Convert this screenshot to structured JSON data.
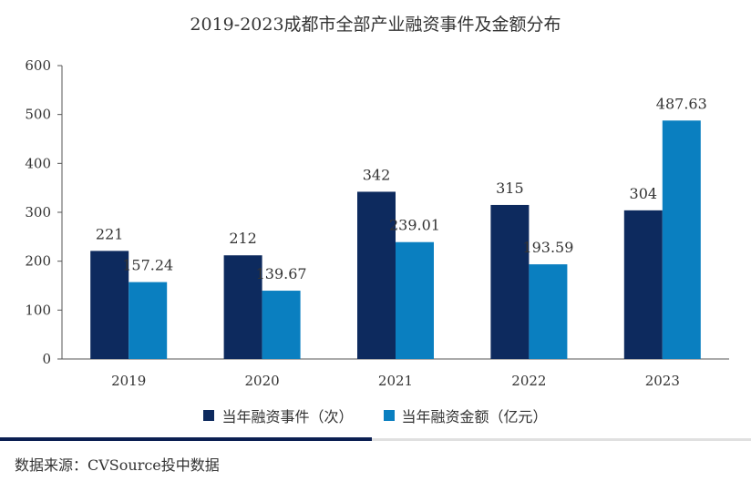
{
  "chart_data": {
    "type": "bar",
    "title": "2019-2023成都市全部产业融资事件及金额分布",
    "categories": [
      "2019",
      "2020",
      "2021",
      "2022",
      "2023"
    ],
    "series": [
      {
        "name": "当年融资事件（次）",
        "values": [
          221,
          212,
          342,
          315,
          304
        ],
        "labels": [
          "221",
          "212",
          "342",
          "315",
          "304"
        ],
        "color": "#0d2a5e"
      },
      {
        "name": "当年融资金额（亿元）",
        "values": [
          157.24,
          139.67,
          239.01,
          193.59,
          487.63
        ],
        "labels": [
          "157.24",
          "139.67",
          "239.01",
          "193.59",
          "487.63"
        ],
        "color": "#0a7fc0"
      }
    ],
    "ylim": [
      0,
      600
    ],
    "yticks": [
      "0",
      "100",
      "200",
      "300",
      "400",
      "500",
      "600"
    ],
    "grid": false,
    "legend": "bottom"
  },
  "footer": {
    "source": "数据来源：CVSource投中数据"
  },
  "watermark": "CVSource 投中数据"
}
